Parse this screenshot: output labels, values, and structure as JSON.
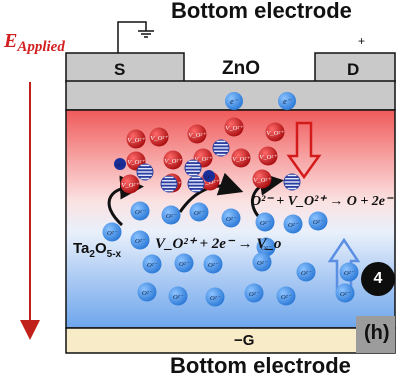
{
  "labels": {
    "top_electrode": "Bottom electrode",
    "bottom_electrode": "Bottom electrode",
    "field": "E",
    "field_sub": "Applied",
    "plus": "+",
    "source": "S",
    "drain": "D",
    "channel": "ZnO",
    "gate": "−G",
    "panel": "(h)",
    "step": "4",
    "oxide": "Ta",
    "oxide_sub": "2",
    "oxide_rest": "O",
    "oxide_sub2": "5-x"
  },
  "equations": {
    "oxidation": "O²⁻ + V_O²⁺ → O + 2e⁻",
    "reduction": "V_O²⁺ + 2e⁻ → V_o"
  },
  "particles": {
    "electron": "e⁻",
    "oxygen_ion": "O²⁻",
    "vacancy": "V_O²⁺"
  },
  "colors": {
    "vacancy": "#c41416",
    "oxygen_ion": "#3b8de0",
    "field_arrow": "#c0211a",
    "electrode": "#f8ebc8",
    "zno": "#c9c9c9"
  }
}
